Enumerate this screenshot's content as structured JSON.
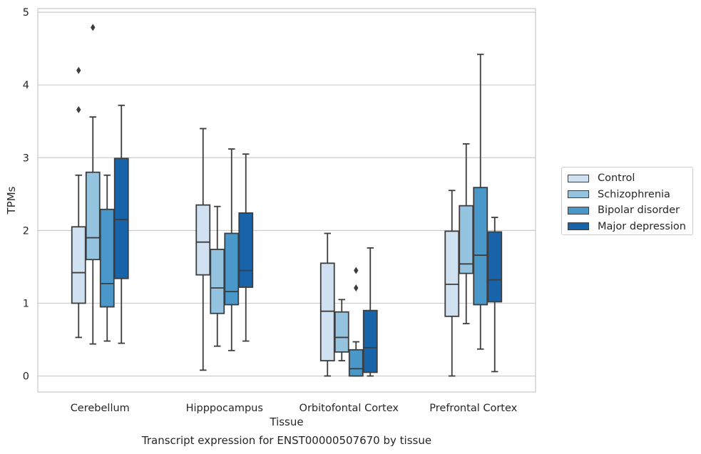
{
  "chart_data": {
    "type": "box",
    "title": "",
    "xlabel": "Tissue",
    "ylabel": "TPMs",
    "caption": "Transcript expression for ENST00000507670 by tissue",
    "ylim": [
      -0.22,
      5.05
    ],
    "yticks": [
      0,
      1,
      2,
      3,
      4,
      5
    ],
    "categories": [
      "Cerebellum",
      "Hipppocampus",
      "Orbitofontal Cortex",
      "Prefrontal Cortex"
    ],
    "legend_position": "right",
    "grid": true,
    "series": [
      {
        "name": "Control",
        "color": "#d0e1f2",
        "boxes": [
          {
            "whislo": 0.53,
            "q1": 1.0,
            "med": 1.42,
            "q3": 2.05,
            "whishi": 2.76,
            "fliers": [
              3.66,
              4.2
            ]
          },
          {
            "whislo": 0.08,
            "q1": 1.39,
            "med": 1.84,
            "q3": 2.35,
            "whishi": 3.4,
            "fliers": []
          },
          {
            "whislo": 0.0,
            "q1": 0.21,
            "med": 0.89,
            "q3": 1.55,
            "whishi": 1.96,
            "fliers": []
          },
          {
            "whislo": 0.0,
            "q1": 0.82,
            "med": 1.26,
            "q3": 1.99,
            "whishi": 2.55,
            "fliers": []
          }
        ]
      },
      {
        "name": "Schizophrenia",
        "color": "#94c4df",
        "boxes": [
          {
            "whislo": 0.44,
            "q1": 1.6,
            "med": 1.9,
            "q3": 2.8,
            "whishi": 3.56,
            "fliers": [
              4.79
            ]
          },
          {
            "whislo": 0.41,
            "q1": 0.86,
            "med": 1.21,
            "q3": 1.74,
            "whishi": 2.33,
            "fliers": []
          },
          {
            "whislo": 0.21,
            "q1": 0.33,
            "med": 0.53,
            "q3": 0.88,
            "whishi": 1.05,
            "fliers": []
          },
          {
            "whislo": 0.72,
            "q1": 1.41,
            "med": 1.54,
            "q3": 2.34,
            "whishi": 3.19,
            "fliers": []
          }
        ]
      },
      {
        "name": "Bipolar disorder",
        "color": "#4a98c9",
        "boxes": [
          {
            "whislo": 0.48,
            "q1": 0.95,
            "med": 1.27,
            "q3": 2.29,
            "whishi": 2.76,
            "fliers": []
          },
          {
            "whislo": 0.35,
            "q1": 0.98,
            "med": 1.16,
            "q3": 1.96,
            "whishi": 3.12,
            "fliers": []
          },
          {
            "whislo": 0.0,
            "q1": 0.0,
            "med": 0.1,
            "q3": 0.36,
            "whishi": 0.47,
            "fliers": [
              1.21,
              1.45
            ]
          },
          {
            "whislo": 0.37,
            "q1": 0.98,
            "med": 1.66,
            "q3": 2.59,
            "whishi": 4.42,
            "fliers": []
          }
        ]
      },
      {
        "name": "Major depression",
        "color": "#1764ab",
        "boxes": [
          {
            "whislo": 0.45,
            "q1": 1.34,
            "med": 2.15,
            "q3": 2.99,
            "whishi": 3.72,
            "fliers": []
          },
          {
            "whislo": 0.48,
            "q1": 1.22,
            "med": 1.45,
            "q3": 2.24,
            "whishi": 3.05,
            "fliers": []
          },
          {
            "whislo": 0.0,
            "q1": 0.05,
            "med": 0.39,
            "q3": 0.9,
            "whishi": 1.76,
            "fliers": []
          },
          {
            "whislo": 0.06,
            "q1": 1.02,
            "med": 1.32,
            "q3": 1.98,
            "whishi": 2.18,
            "fliers": []
          }
        ]
      }
    ]
  }
}
